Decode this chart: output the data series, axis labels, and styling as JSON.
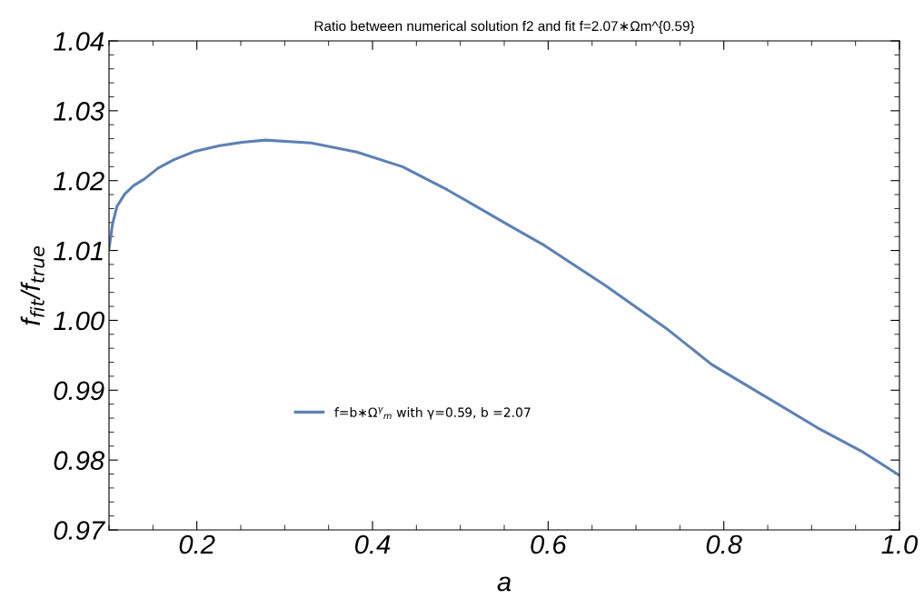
{
  "chart_data": {
    "type": "line",
    "title": "Ratio between numerical solution f2 and fit f=2.07∗Ωm^{0.59}",
    "xlabel": "a",
    "ylabel": "f$_{fit}$/f$_{true}$",
    "x": [
      0.1,
      0.104,
      0.109,
      0.118,
      0.128,
      0.14,
      0.156,
      0.174,
      0.198,
      0.226,
      0.252,
      0.278,
      0.33,
      0.382,
      0.434,
      0.485,
      0.554,
      0.596,
      0.665,
      0.734,
      0.786,
      0.838,
      0.907,
      0.959,
      1.0
    ],
    "series": [
      {
        "name": "f=b∗Ω$^{γ}$$_{m}$ with γ=0.59, b =2.07",
        "color": "#5e81b5",
        "values": [
          1.0102,
          1.0138,
          1.0163,
          1.0181,
          1.0193,
          1.0202,
          1.0218,
          1.023,
          1.0242,
          1.025,
          1.0255,
          1.0258,
          1.0254,
          1.0241,
          1.022,
          1.0187,
          1.0137,
          1.0107,
          1.005,
          0.9989,
          0.9937,
          0.9898,
          0.9846,
          0.9811,
          0.9778
        ]
      }
    ],
    "xlim": [
      0.1,
      1.0
    ],
    "xticks": [
      0.2,
      0.4,
      0.6,
      0.8,
      {
        "value": 1.0,
        "label": "1.0"
      }
    ],
    "ylim": [
      0.97,
      1.04
    ],
    "yticks": [
      {
        "value": 0.97,
        "label": "0.97"
      },
      {
        "value": 0.98,
        "label": "0.98"
      },
      {
        "value": 0.99,
        "label": "0.99"
      },
      {
        "value": 1.0,
        "label": "1.00"
      },
      {
        "value": 1.01,
        "label": "1.01"
      },
      {
        "value": 1.02,
        "label": "1.02"
      },
      {
        "value": 1.03,
        "label": "1.03"
      },
      {
        "value": 1.04,
        "label": "1.04"
      }
    ],
    "grid": false,
    "legend": "bottom left",
    "marker": "none",
    "line_style": "solid"
  }
}
